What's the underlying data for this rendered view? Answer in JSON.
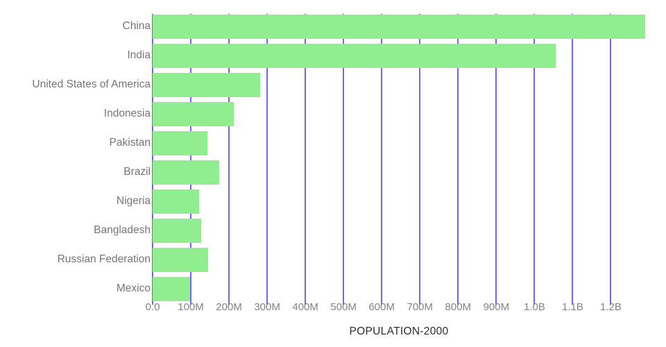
{
  "chart_data": {
    "type": "bar",
    "orientation": "horizontal",
    "title": "",
    "xlabel": "POPULATION-2000",
    "ylabel": "",
    "categories": [
      "China",
      "India",
      "United States of America",
      "Indonesia",
      "Pakistan",
      "Brazil",
      "Nigeria",
      "Bangladesh",
      "Russian Federation",
      "Mexico"
    ],
    "values": [
      1290000000,
      1056000000,
      282000000,
      212000000,
      143000000,
      175000000,
      121000000,
      128000000,
      146000000,
      99000000
    ],
    "xlim": [
      0,
      1290000000
    ],
    "xticks": [
      {
        "value": 0,
        "label": "0.0"
      },
      {
        "value": 100000000,
        "label": "100M"
      },
      {
        "value": 200000000,
        "label": "200M"
      },
      {
        "value": 300000000,
        "label": "300M"
      },
      {
        "value": 400000000,
        "label": "400M"
      },
      {
        "value": 500000000,
        "label": "500M"
      },
      {
        "value": 600000000,
        "label": "600M"
      },
      {
        "value": 700000000,
        "label": "700M"
      },
      {
        "value": 800000000,
        "label": "800M"
      },
      {
        "value": 900000000,
        "label": "900M"
      },
      {
        "value": 1000000000,
        "label": "1.0B"
      },
      {
        "value": 1100000000,
        "label": "1.1B"
      },
      {
        "value": 1200000000,
        "label": "1.2B"
      }
    ],
    "grid": "vertical",
    "legend": "none",
    "colors": {
      "bar": "#90ee90",
      "grid": "#6f68ec",
      "category_label": "#757575",
      "tick_label": "#828282",
      "axis_title": "#2b2b2b",
      "background": "#ffffff"
    }
  }
}
